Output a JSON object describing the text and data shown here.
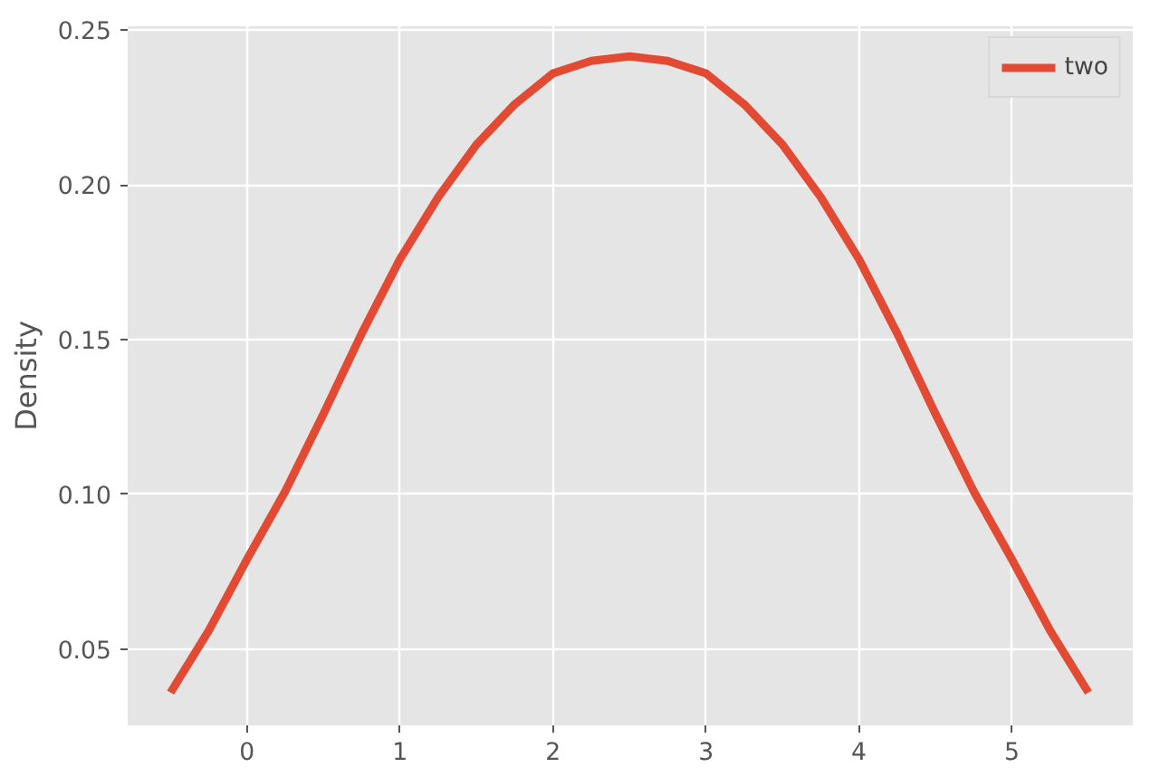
{
  "chart_data": {
    "type": "line",
    "ylabel": "Density",
    "x": [
      -0.5,
      -0.25,
      0,
      0.25,
      0.5,
      0.75,
      1,
      1.25,
      1.5,
      1.75,
      2,
      2.25,
      2.5,
      2.75,
      3,
      3.25,
      3.5,
      3.75,
      4,
      4.25,
      4.5,
      4.75,
      5,
      5.25,
      5.5
    ],
    "series": [
      {
        "name": "two",
        "color": "#e24a33",
        "values": [
          0.036,
          0.056,
          0.079,
          0.101,
          0.126,
          0.152,
          0.176,
          0.196,
          0.213,
          0.226,
          0.236,
          0.24,
          0.2415,
          0.24,
          0.236,
          0.226,
          0.213,
          0.196,
          0.176,
          0.152,
          0.126,
          0.101,
          0.079,
          0.056,
          0.036
        ]
      }
    ],
    "xlim": [
      -0.78,
      5.79
    ],
    "ylim": [
      0.0254,
      0.2512
    ],
    "xticks": [
      0,
      1,
      2,
      3,
      4,
      5
    ],
    "yticks": [
      {
        "value": 0.05,
        "label": "0.05"
      },
      {
        "value": 0.1,
        "label": "0.10"
      },
      {
        "value": 0.15,
        "label": "0.15"
      },
      {
        "value": 0.2,
        "label": "0.20"
      },
      {
        "value": 0.25,
        "label": "0.25"
      }
    ],
    "grid": true,
    "legend": "top right",
    "line_style": "solid",
    "marker": "none"
  }
}
